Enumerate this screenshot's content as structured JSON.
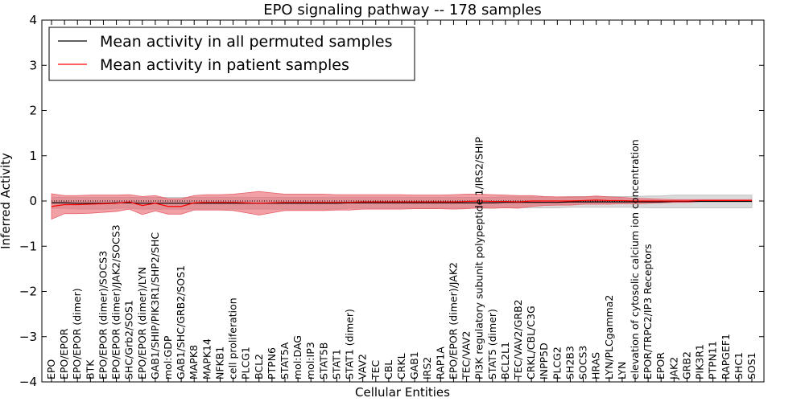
{
  "chart_data": {
    "type": "line",
    "title": "EPO signaling pathway -- 178 samples",
    "xlabel": "Cellular Entities",
    "ylabel": "Inferred Activity",
    "ylim": [
      -4,
      4
    ],
    "yticks": [
      "4",
      "3",
      "2",
      "1",
      "0",
      "−1",
      "−2",
      "−3",
      "−4"
    ],
    "legend_position": "top-left",
    "categories": [
      "EPO",
      "EPO/EPOR",
      "EPO/EPOR (dimer)",
      "BTK",
      "EPO/EPOR (dimer)/SOCS3",
      "EPO/EPOR (dimer)/JAK2/SOCS3",
      "SHC/Grb2/SOS1",
      "EPO/EPOR (dimer)/LYN",
      "GAB1/SHIP/PIK3R1/SHP2/SHC",
      "mol:GDP",
      "GAB1/SHC/GRB2/SOS1",
      "MAPK8",
      "MAPK14",
      "NFKB1",
      "cell proliferation",
      "PLCG1",
      "BCL2",
      "PTPN6",
      "STAT5A",
      "mol:DAG",
      "mol:IP3",
      "STAT5B",
      "STAT1",
      "STAT1 (dimer)",
      "VAV2",
      "TEC",
      "CBL",
      "CRKL",
      "GAB1",
      "IRS2",
      "RAP1A",
      "EPO/EPOR (dimer)/JAK2",
      "TEC/VAV2",
      "PI3K regulatory subunit polypeptide 1/IRS2/SHIP",
      "STAT5 (dimer)",
      "BCL2L1",
      "TEC/VAV2/GRB2",
      "CRKL/CBL/C3G",
      "INPP5D",
      "PLCG2",
      "SH2B3",
      "SOCS3",
      "HRAS",
      "LYN/PLCgamma2",
      "LYN",
      "elevation of cytosolic calcium ion concentration",
      "EPOR/TRPC2/IP3 Receptors",
      "EPOR",
      "JAK2",
      "GRB2",
      "PIK3R1",
      "PTPN11",
      "RAPGEF1",
      "SHC1",
      "SOS1"
    ],
    "series": [
      {
        "name": "Mean activity in all permuted samples",
        "color": "#000000",
        "band_color": "#bbbbbb",
        "values": [
          -0.04,
          -0.04,
          -0.05,
          -0.05,
          -0.05,
          -0.04,
          -0.04,
          -0.05,
          -0.05,
          -0.05,
          -0.05,
          -0.05,
          -0.05,
          -0.05,
          -0.05,
          -0.05,
          -0.05,
          -0.05,
          -0.05,
          -0.05,
          -0.05,
          -0.05,
          -0.05,
          -0.04,
          -0.04,
          -0.04,
          -0.04,
          -0.04,
          -0.04,
          -0.04,
          -0.04,
          -0.04,
          -0.04,
          -0.04,
          -0.04,
          -0.03,
          -0.03,
          -0.03,
          -0.03,
          -0.03,
          -0.02,
          -0.02,
          -0.02,
          -0.02,
          -0.02,
          -0.02,
          -0.02,
          -0.02,
          -0.01,
          -0.01,
          -0.01,
          -0.01,
          -0.01,
          -0.01,
          -0.01
        ],
        "band": [
          0.12,
          0.12,
          0.13,
          0.13,
          0.13,
          0.12,
          0.12,
          0.13,
          0.13,
          0.13,
          0.13,
          0.13,
          0.13,
          0.13,
          0.13,
          0.13,
          0.13,
          0.13,
          0.13,
          0.13,
          0.13,
          0.13,
          0.13,
          0.12,
          0.12,
          0.12,
          0.12,
          0.12,
          0.12,
          0.12,
          0.12,
          0.12,
          0.12,
          0.12,
          0.12,
          0.12,
          0.12,
          0.12,
          0.12,
          0.12,
          0.12,
          0.12,
          0.12,
          0.12,
          0.12,
          0.12,
          0.13,
          0.13,
          0.14,
          0.14,
          0.14,
          0.14,
          0.14,
          0.14,
          0.14
        ]
      },
      {
        "name": "Mean activity in patient samples",
        "color": "#ff0000",
        "band_color": "#e8616b",
        "values": [
          -0.12,
          -0.08,
          -0.08,
          -0.07,
          -0.06,
          -0.05,
          -0.02,
          -0.1,
          -0.05,
          -0.12,
          -0.12,
          -0.04,
          -0.03,
          -0.03,
          -0.03,
          -0.04,
          -0.05,
          -0.04,
          -0.03,
          -0.03,
          -0.03,
          -0.03,
          -0.03,
          -0.03,
          -0.02,
          -0.02,
          -0.02,
          -0.02,
          -0.02,
          -0.02,
          -0.02,
          -0.02,
          -0.01,
          0.0,
          -0.01,
          -0.01,
          -0.02,
          0.0,
          0.0,
          0.0,
          0.0,
          0.01,
          0.02,
          0.01,
          0.01,
          0.0,
          0.0,
          0.0,
          0.0,
          0.0,
          0.01,
          0.01,
          0.01,
          0.01,
          0.01
        ],
        "band": [
          0.28,
          0.2,
          0.2,
          0.2,
          0.19,
          0.18,
          0.16,
          0.2,
          0.17,
          0.17,
          0.17,
          0.16,
          0.17,
          0.17,
          0.18,
          0.22,
          0.26,
          0.22,
          0.18,
          0.18,
          0.18,
          0.18,
          0.17,
          0.17,
          0.16,
          0.16,
          0.16,
          0.16,
          0.15,
          0.15,
          0.15,
          0.16,
          0.16,
          0.15,
          0.15,
          0.14,
          0.14,
          0.12,
          0.1,
          0.09,
          0.09,
          0.08,
          0.09,
          0.08,
          0.07,
          0.06,
          0.05,
          0.04,
          0.03,
          0.03,
          0.02,
          0.02,
          0.02,
          0.02,
          0.02
        ]
      }
    ]
  }
}
